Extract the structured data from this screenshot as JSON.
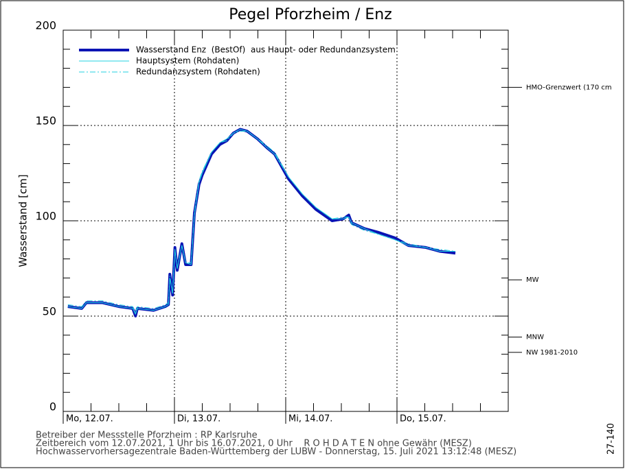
{
  "chart_data": {
    "type": "line",
    "title": "Pegel Pforzheim / Enz",
    "ylabel": "Wasserstand [cm]",
    "xlim": [
      0,
      96
    ],
    "xticks": [
      {
        "value": 0,
        "label": "Mo, 12.07."
      },
      {
        "value": 24,
        "label": "Di, 13.07."
      },
      {
        "value": 48,
        "label": "Mi, 14.07."
      },
      {
        "value": 72,
        "label": "Do, 15.07."
      }
    ],
    "xminor_ticks": [
      6,
      12,
      18,
      30,
      36,
      42,
      54,
      60,
      66,
      78,
      84,
      90
    ],
    "ylim": [
      0,
      200
    ],
    "yticks": [
      0,
      50,
      100,
      150,
      200
    ],
    "yminor_ticks": [
      10,
      20,
      30,
      40,
      60,
      70,
      80,
      90,
      110,
      120,
      130,
      140,
      160,
      170,
      180,
      190
    ],
    "grid": true,
    "x": [
      1,
      4,
      5,
      8.5,
      12,
      15,
      15.6,
      16,
      19.5,
      22,
      22.7,
      23,
      23.6,
      24.1,
      24.6,
      25.6,
      26.4,
      27.6,
      28.3,
      29.3,
      30,
      32,
      33.8,
      35.3,
      36.7,
      38.2,
      39.7,
      41.9,
      44.1,
      45.6,
      48.6,
      51.6,
      54.5,
      58,
      60.4,
      61.6,
      62.2,
      64.9,
      67.9,
      71.6,
      74.5,
      78.2,
      81.2,
      84.6
    ],
    "series": [
      {
        "name": "Wasserstand Enz  (BestOf)  aus Haupt- oder Redundanzsystem",
        "color": "#0a14b4",
        "style": "thick",
        "values": [
          55,
          54,
          57,
          57,
          55,
          54,
          50,
          54,
          53,
          55,
          56,
          72,
          61,
          86,
          74,
          88,
          77,
          77,
          104,
          119,
          124,
          135,
          140,
          142,
          146,
          148,
          147,
          143,
          138,
          135,
          122,
          113,
          106,
          100,
          101,
          103,
          99,
          96,
          94,
          91,
          87,
          86,
          84,
          83
        ]
      },
      {
        "name": "Hauptsystem (Rohdaten)",
        "color": "#20d0e0",
        "style": "solid",
        "values": [
          55,
          54,
          57,
          57,
          55,
          54,
          51,
          54,
          53,
          55,
          56,
          70,
          62,
          85,
          75,
          87,
          78,
          77,
          103,
          120,
          125,
          136,
          141,
          143,
          146,
          148,
          147,
          143,
          138,
          135,
          123,
          114,
          107,
          101,
          101,
          102,
          99,
          96,
          93,
          90,
          87,
          86,
          84,
          84
        ]
      },
      {
        "name": "Redundanzsystem (Rohdaten)",
        "color": "#20d0e0",
        "style": "dashdot",
        "values": [
          56,
          55,
          58,
          58,
          56,
          55,
          52,
          55,
          54,
          56,
          57,
          71,
          62,
          85,
          75,
          87,
          78,
          78,
          104,
          121,
          126,
          136,
          141,
          142,
          146,
          147,
          147,
          143,
          139,
          136,
          123,
          114,
          107,
          101,
          102,
          102,
          98,
          95,
          93,
          90,
          88,
          86,
          85,
          84
        ]
      }
    ],
    "reference_lines": [
      {
        "value": 170,
        "label": "HMO-Grenzwert (170 cm"
      },
      {
        "value": 69,
        "label": "MW"
      },
      {
        "value": 39,
        "label": "MNW"
      },
      {
        "value": 31,
        "label": "NW 1981-2010"
      }
    ],
    "footer": [
      "Betreiber der Messstelle Pforzheim : RP Karlsruhe",
      "Zeitbereich vom 12.07.2021, 1 Uhr bis 16.07.2021, 0 Uhr    R O H D A T E N ohne Gewähr (MESZ)",
      "Hochwasservorhersagezentrale Baden-Württemberg der LUBW - Donnerstag, 15. Juli 2021 13:12:48 (MESZ)"
    ],
    "code": "27-140"
  }
}
